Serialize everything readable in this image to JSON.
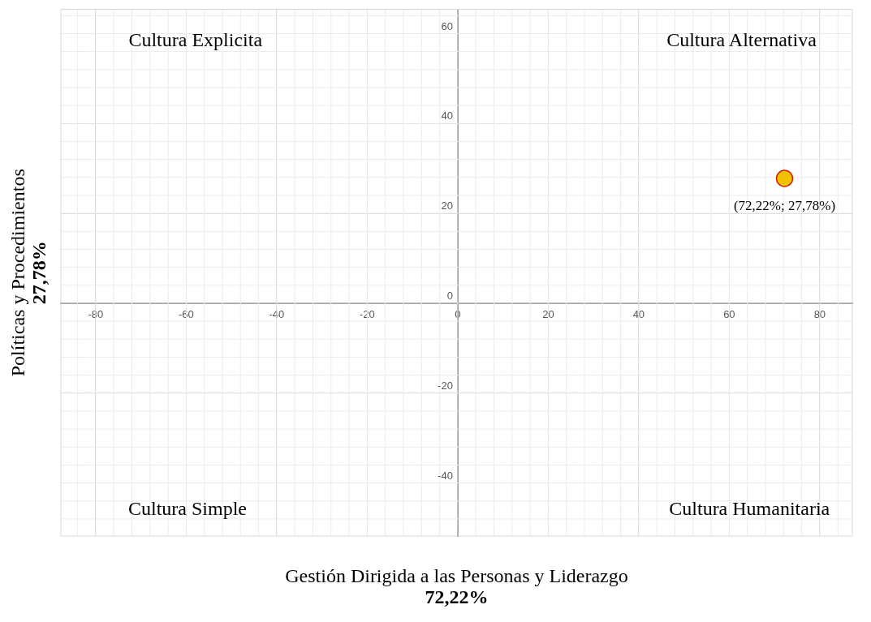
{
  "chart_data": {
    "type": "scatter",
    "xlabel": "Gestión Dirigida a las Personas y Liderazgo\n72,22%",
    "ylabel": "Políticas y Procedimientos\n27,78%",
    "x": [
      72.22
    ],
    "series": [
      {
        "color": "#f2c200",
        "values": [
          27.78
        ],
        "value_labels": [
          "(72,22%; 27,78%)"
        ]
      }
    ],
    "xlim": [
      -87.7,
      87.2
    ],
    "xticks": [
      -80,
      -60,
      -40,
      -20,
      0,
      20,
      40,
      60,
      80
    ],
    "ylim": [
      -51.8,
      65.4
    ],
    "yticks": [
      -40,
      -20,
      0,
      20,
      40,
      60
    ],
    "grid": true,
    "legend": false,
    "marker": "circle",
    "annotations": [
      "Cultura Explicita",
      "Cultura Alternativa",
      "Cultura Simple",
      "Cultura Humanitaria"
    ]
  }
}
